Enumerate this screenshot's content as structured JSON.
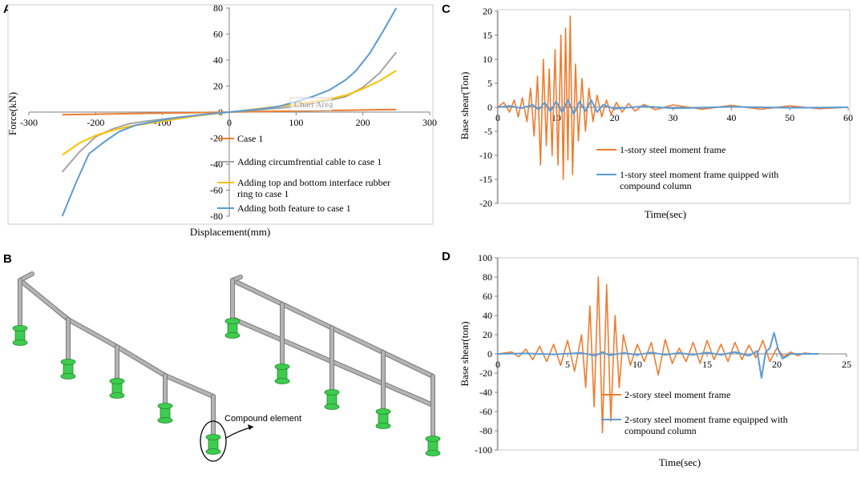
{
  "panel_letters": {
    "a": "A",
    "b": "B",
    "c": "C",
    "d": "D"
  },
  "illustration": {
    "callout": "Compound element"
  },
  "colors": {
    "orange": "#ED7D31",
    "gray": "#A5A5A5",
    "yellow": "#FFC000",
    "blue": "#5B9BD5",
    "axis": "#808080",
    "frame_steel": "#B4B4B4",
    "frame_green": "#3FCB4F"
  },
  "chart_data": [
    {
      "id": "A",
      "type": "line",
      "title": "",
      "xlabel": "Displacement(mm)",
      "ylabel": "Force(kN)",
      "xlim": [
        -300,
        300
      ],
      "ylim": [
        -80,
        80
      ],
      "xticks": [
        -300,
        -200,
        -100,
        0,
        100,
        200,
        300
      ],
      "yticks": [
        -80,
        -60,
        -40,
        -20,
        0,
        20,
        40,
        60,
        80
      ],
      "tooltip": "Chart Area",
      "legend_position": "bottom-right",
      "series": [
        {
          "name": "Case 1",
          "color": "#ED7D31",
          "x": [
            -250,
            -200,
            -150,
            -100,
            -50,
            0,
            50,
            100,
            150,
            200,
            250
          ],
          "y": [
            -2,
            -1.6,
            -1.2,
            -0.8,
            -0.4,
            0,
            0.4,
            0.8,
            1.2,
            1.6,
            2
          ]
        },
        {
          "name": "Adding circumfrential cable to case 1",
          "color": "#A5A5A5",
          "x": [
            -250,
            -225,
            -200,
            -175,
            -150,
            -125,
            -100,
            -75,
            -50,
            -25,
            0,
            25,
            50,
            75,
            100,
            125,
            150,
            175,
            200,
            225,
            250
          ],
          "y": [
            -46,
            -31,
            -19,
            -13,
            -9,
            -7,
            -5.5,
            -4,
            -2.5,
            -1.2,
            0,
            1,
            2,
            3,
            4.5,
            6.5,
            9,
            12,
            19,
            30,
            46
          ]
        },
        {
          "name": "Adding top and bottom interface rubber ring to case 1",
          "color": "#FFC000",
          "x": [
            -250,
            -225,
            -200,
            -175,
            -150,
            -125,
            -100,
            -75,
            -50,
            -25,
            0,
            25,
            50,
            75,
            100,
            125,
            150,
            175,
            200,
            225,
            250
          ],
          "y": [
            -33,
            -24,
            -18,
            -14,
            -11,
            -9,
            -7,
            -5,
            -3,
            -1.5,
            0,
            1.5,
            3,
            4.5,
            6,
            8,
            10,
            13,
            18,
            24,
            32
          ]
        },
        {
          "name": "Adding both feature to case 1",
          "color": "#5B9BD5",
          "x": [
            -250,
            -230,
            -210,
            -190,
            -165,
            -140,
            -120,
            -100,
            -75,
            -50,
            -25,
            0,
            25,
            50,
            75,
            100,
            125,
            150,
            175,
            190,
            210,
            230,
            250
          ],
          "y": [
            -80,
            -55,
            -32,
            -24,
            -15,
            -10,
            -8,
            -6,
            -4,
            -2.5,
            -1.2,
            0,
            1.2,
            2.5,
            4.5,
            8,
            12,
            17,
            25,
            32,
            45,
            62,
            80
          ]
        }
      ]
    },
    {
      "id": "C",
      "type": "line",
      "xlabel": "Time(sec)",
      "ylabel": "Base shear(Ton)",
      "xlim": [
        0,
        60
      ],
      "ylim": [
        -20,
        20
      ],
      "xticks": [
        0,
        10,
        20,
        30,
        40,
        50,
        60
      ],
      "yticks": [
        -20,
        -15,
        -10,
        -5,
        0,
        5,
        10,
        15,
        20
      ],
      "legend_position": "bottom-right",
      "series": [
        {
          "name": "1-story steel moment frame",
          "color": "#ED7D31",
          "x": [
            0,
            1,
            2,
            2.8,
            3.5,
            4.2,
            5,
            5.6,
            6.2,
            6.8,
            7.3,
            7.8,
            8.3,
            8.8,
            9.3,
            9.8,
            10.3,
            10.8,
            11.2,
            11.6,
            12,
            12.4,
            12.8,
            13.3,
            13.8,
            14.4,
            15,
            15.6,
            16.3,
            17,
            17.8,
            18.6,
            19.4,
            20.3,
            21.3,
            22.4,
            23.5,
            25,
            27,
            30,
            35,
            40,
            45,
            50,
            55,
            60
          ],
          "y": [
            0,
            1,
            -1,
            1.5,
            -2,
            2,
            -3,
            4,
            -6,
            6.5,
            -12,
            10,
            -8,
            8,
            -10,
            12,
            -12,
            15,
            -15,
            16.5,
            -11,
            19,
            -14,
            9,
            -7,
            6,
            -5,
            4,
            -3,
            2.5,
            -2,
            1.5,
            -1.5,
            1,
            -1,
            0.8,
            -0.8,
            0.6,
            -0.5,
            0.5,
            -0.4,
            0.4,
            -0.4,
            0.3,
            -0.3,
            0
          ]
        },
        {
          "name": "1-story steel moment frame quipped with compound column",
          "color": "#5B9BD5",
          "x": [
            0,
            2,
            4,
            6,
            7,
            8,
            9,
            10,
            11,
            12,
            13,
            14,
            15,
            16,
            17,
            18,
            20,
            25,
            30,
            40,
            50,
            60
          ],
          "y": [
            0,
            0.3,
            -0.2,
            0.5,
            -0.5,
            1,
            -0.8,
            1.2,
            -1,
            1.5,
            -1.4,
            1.2,
            -0.8,
            1.5,
            -1,
            0.5,
            -0.3,
            0.2,
            -0.2,
            0.1,
            -0.1,
            0
          ]
        }
      ]
    },
    {
      "id": "D",
      "type": "line",
      "xlabel": "Time(sec)",
      "ylabel": "Base shear(ton)",
      "xlim": [
        0,
        25
      ],
      "ylim": [
        -100,
        100
      ],
      "xticks": [
        0,
        5,
        10,
        15,
        20,
        25
      ],
      "yticks": [
        -100,
        -80,
        -60,
        -40,
        -20,
        0,
        20,
        40,
        60,
        80,
        100
      ],
      "legend_position": "bottom-right",
      "series": [
        {
          "name": "2-story steel moment frame",
          "color": "#ED7D31",
          "x": [
            0,
            1,
            1.5,
            2,
            2.5,
            3,
            3.5,
            4,
            4.5,
            5,
            5.5,
            6,
            6.3,
            6.6,
            6.9,
            7.2,
            7.5,
            7.8,
            8.1,
            8.4,
            8.7,
            9,
            9.5,
            10,
            10.5,
            11,
            11.5,
            12,
            12.5,
            13,
            13.5,
            14,
            14.5,
            15,
            15.5,
            16,
            16.5,
            17,
            17.5,
            18,
            18.5,
            19,
            19.5,
            20,
            20.5,
            21,
            21.5,
            22,
            22.5,
            23
          ],
          "y": [
            0,
            2,
            -3,
            5,
            -6,
            8,
            -8,
            10,
            -12,
            14,
            -18,
            20,
            -35,
            50,
            -55,
            80,
            -82,
            72,
            -70,
            40,
            -35,
            20,
            -12,
            10,
            -8,
            12,
            -22,
            15,
            -10,
            6,
            -8,
            12,
            -10,
            14,
            -6,
            10,
            -8,
            12,
            -6,
            9,
            -4,
            14,
            -8,
            6,
            -3,
            2,
            -2,
            1,
            0,
            0
          ]
        },
        {
          "name": "2-story steel moment frame equipped with compound column",
          "color": "#5B9BD5",
          "x": [
            0,
            2,
            4,
            6,
            7,
            7.5,
            8,
            9,
            10,
            11,
            12,
            13,
            14,
            15,
            16,
            17,
            18,
            18.6,
            18.9,
            19.2,
            19.5,
            19.8,
            20.1,
            20.4,
            21,
            22,
            23
          ],
          "y": [
            0,
            0.5,
            -0.5,
            1,
            -2,
            2,
            -1.5,
            1,
            -1,
            1.5,
            -1,
            1,
            -1,
            1.5,
            -1,
            2,
            -2,
            3,
            -25,
            2,
            6,
            22,
            5,
            -5,
            0,
            0,
            0
          ]
        }
      ]
    }
  ]
}
